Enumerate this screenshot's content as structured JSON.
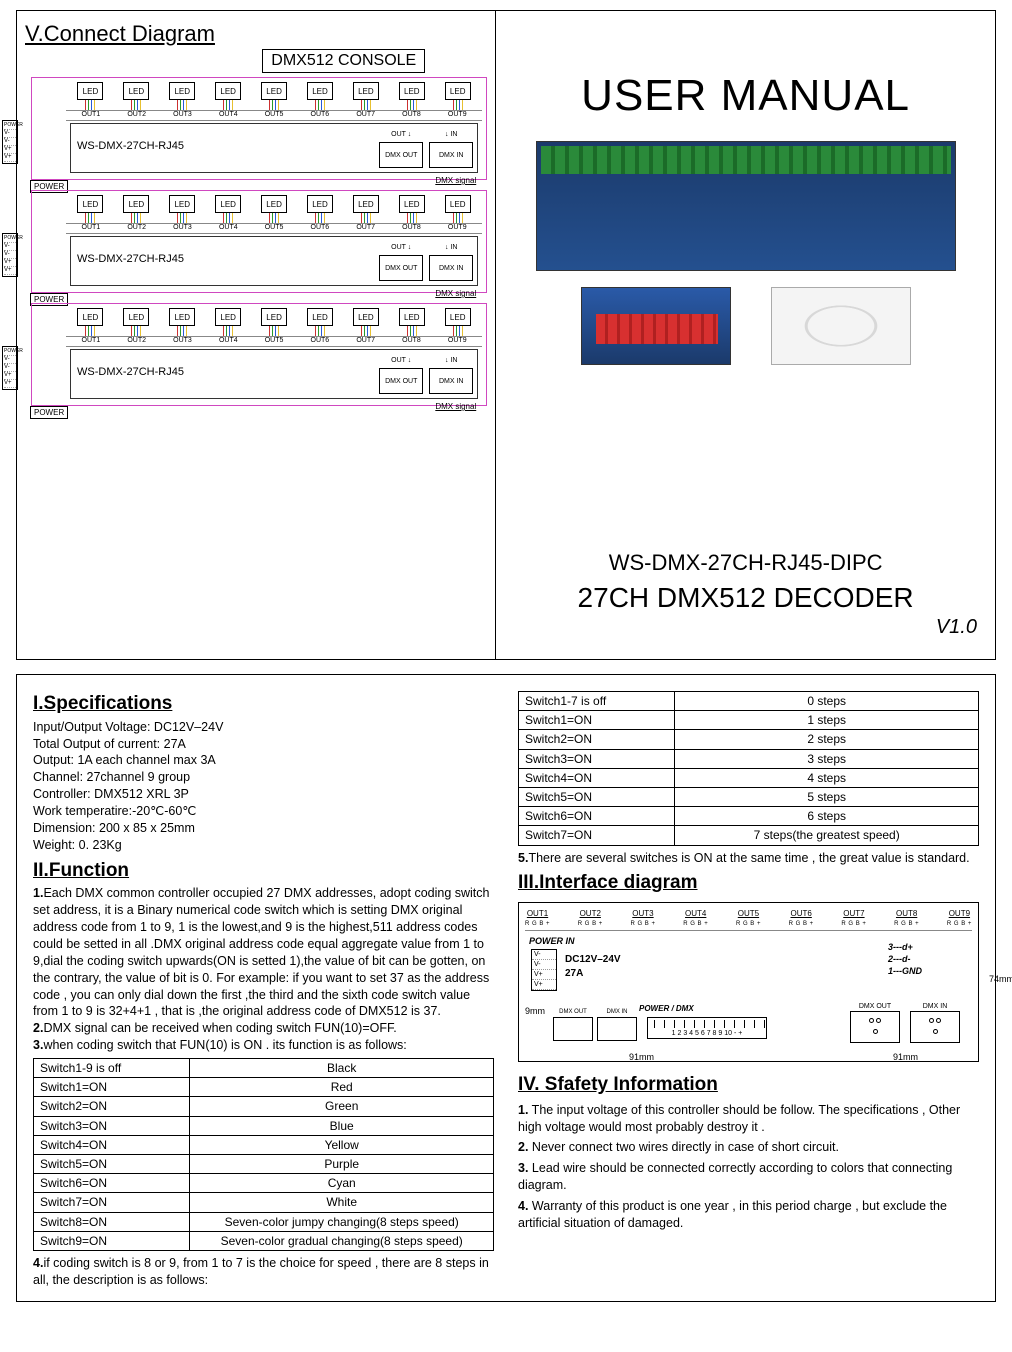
{
  "top": {
    "connect_title": "V.Connect Diagram",
    "console_label": "DMX512 CONSOLE",
    "led_label": "LED",
    "outs": [
      "OUT1",
      "OUT2",
      "OUT3",
      "OUT4",
      "OUT5",
      "OUT6",
      "OUT7",
      "OUT8",
      "OUT9"
    ],
    "board_model": "WS-DMX-27CH-RJ45",
    "power_pins": [
      "V-",
      "V-",
      "V+",
      "V+"
    ],
    "power_label": "POWER",
    "out_arrow": "OUT ↓",
    "in_arrow": "↓ IN",
    "dmx_out": "DMX OUT",
    "dmx_in": "DMX IN",
    "dmx_signal": "DMX signal",
    "manual_title": "USER MANUAL",
    "model_no": "WS-DMX-27CH-RJ45-DIPC",
    "product_desc": "27CH DMX512 DECODER",
    "version": "V1.0"
  },
  "specs": {
    "title": "I.Specifications",
    "lines": [
      "Input/Output Voltage: DC12V–24V",
      "Total Output of current: 27A",
      "Output: 1A each channel max 3A",
      "Channel: 27channel 9 group",
      "Controller: DMX512 XRL 3P",
      "Work temperatire:-20℃-60℃",
      "Dimension: 200 x 85 x 25mm",
      "Weight: 0. 23Kg"
    ]
  },
  "func": {
    "title": "II.Function",
    "p1": "Each DMX common controller occupied 27 DMX addresses, adopt coding switch set address, it is a Binary numerical code switch which is setting DMX original address code from 1 to 9, 1 is the lowest,and 9 is the highest,511 address codes could be setted in all .DMX original address code equal aggregate value from 1 to 9,dial the coding switch upwards(ON is setted 1),the value of bit can be gotten, on the contrary, the value of bit is 0. For example: if you want to set 37 as the address code , you can only dial down the first ,the third and the sixth code switch value from 1 to 9 is 32+4+1 , that is ,the original address code of DMX512 is 37.",
    "p2": "DMX signal can be received when coding switch FUN(10)=OFF.",
    "p3": "when coding switch that FUN(10) is ON . its function is as follows:",
    "table1": [
      [
        "Switch1-9 is off",
        "Black"
      ],
      [
        "Switch1=ON",
        "Red"
      ],
      [
        "Switch2=ON",
        "Green"
      ],
      [
        "Switch3=ON",
        "Blue"
      ],
      [
        "Switch4=ON",
        "Yellow"
      ],
      [
        "Switch5=ON",
        "Purple"
      ],
      [
        "Switch6=ON",
        "Cyan"
      ],
      [
        "Switch7=ON",
        "White"
      ],
      [
        "Switch8=ON",
        "Seven-color jumpy changing(8 steps speed)"
      ],
      [
        "Switch9=ON",
        "Seven-color gradual changing(8 steps speed)"
      ]
    ],
    "p4": "if coding switch is 8 or 9,  from 1 to 7 is the choice for speed , there are 8 steps in all, the description is as follows:",
    "table2": [
      [
        "Switch1-7 is off",
        "0 steps"
      ],
      [
        "Switch1=ON",
        "1 steps"
      ],
      [
        "Switch2=ON",
        "2 steps"
      ],
      [
        "Switch3=ON",
        "3 steps"
      ],
      [
        "Switch4=ON",
        "4 steps"
      ],
      [
        "Switch5=ON",
        "5 steps"
      ],
      [
        "Switch6=ON",
        "6 steps"
      ],
      [
        "Switch7=ON",
        "7 steps(the greatest speed)"
      ]
    ],
    "p5": "There are several switches is ON at the same time , the great value is standard."
  },
  "iface": {
    "title": "III.Interface diagram",
    "outs": [
      "OUT1",
      "OUT2",
      "OUT3",
      "OUT4",
      "OUT5",
      "OUT6",
      "OUT7",
      "OUT8",
      "OUT9"
    ],
    "rgb": "R G B +",
    "power_in": "POWER IN",
    "pins": [
      "V-",
      "V-",
      "V+",
      "V+"
    ],
    "dc": "DC12V–24V",
    "amps": "27A",
    "legend": [
      "3---d+",
      "2---d-",
      "1---GND"
    ],
    "pdmx": "POWER / DMX",
    "rj1": "DMX OUT",
    "rj2": "DMX IN",
    "dip": "1 2 3 4 5 6 7 8 9 10  -  +",
    "xlr_out": "DMX OUT",
    "xlr_in": "DMX IN",
    "dim_h": "74mm",
    "dim_w1": "91mm",
    "dim_w2": "91mm",
    "dim_side": "9mm"
  },
  "safety": {
    "title": "IV. Sfafety Information",
    "items": [
      "The input voltage of this controller should be follow. The specifications , Other high voltage would most probably destroy it .",
      "Never connect two wires directly in case of short circuit.",
      "Lead wire should be connected correctly according to colors that connecting diagram.",
      "Warranty of this product is one year , in this period charge , but exclude the artificial situation of damaged."
    ]
  }
}
